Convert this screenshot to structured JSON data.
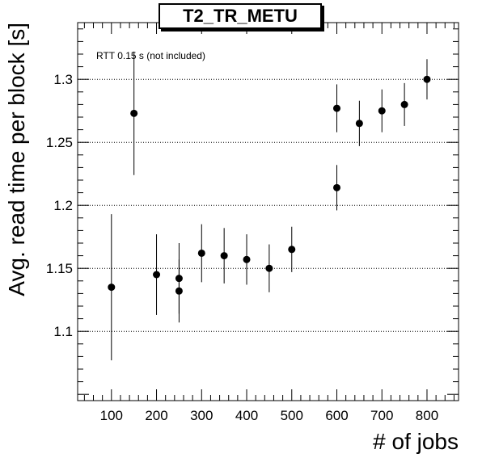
{
  "chart_data": {
    "type": "scatter",
    "title": "T2_TR_METU",
    "annotation": "RTT 0.15 s (not included)",
    "xlabel": "# of jobs",
    "ylabel": "Avg. read time per block [s]",
    "xlim": [
      25,
      870
    ],
    "ylim": [
      1.045,
      1.345
    ],
    "xticks": [
      100,
      200,
      300,
      400,
      500,
      600,
      700,
      800
    ],
    "yticks": [
      1.1,
      1.15,
      1.2,
      1.25,
      1.3
    ],
    "ytick_labels": [
      "1.1",
      "1.15",
      "1.2",
      "1.25",
      "1.3"
    ],
    "grid": "y-dotted",
    "points": [
      {
        "x": 100,
        "y": 1.135,
        "err": 0.058
      },
      {
        "x": 150,
        "y": 1.273,
        "err": 0.049
      },
      {
        "x": 200,
        "y": 1.145,
        "err": 0.032
      },
      {
        "x": 250,
        "y": 1.142,
        "err": 0.028
      },
      {
        "x": 250,
        "y": 1.132,
        "err": 0.025
      },
      {
        "x": 300,
        "y": 1.162,
        "err": 0.023
      },
      {
        "x": 350,
        "y": 1.16,
        "err": 0.022
      },
      {
        "x": 400,
        "y": 1.157,
        "err": 0.02
      },
      {
        "x": 450,
        "y": 1.15,
        "err": 0.019
      },
      {
        "x": 500,
        "y": 1.165,
        "err": 0.018
      },
      {
        "x": 600,
        "y": 1.277,
        "err": 0.019
      },
      {
        "x": 600,
        "y": 1.214,
        "err": 0.018
      },
      {
        "x": 650,
        "y": 1.265,
        "err": 0.018
      },
      {
        "x": 700,
        "y": 1.275,
        "err": 0.017
      },
      {
        "x": 750,
        "y": 1.28,
        "err": 0.017
      },
      {
        "x": 800,
        "y": 1.3,
        "err": 0.016
      }
    ]
  }
}
